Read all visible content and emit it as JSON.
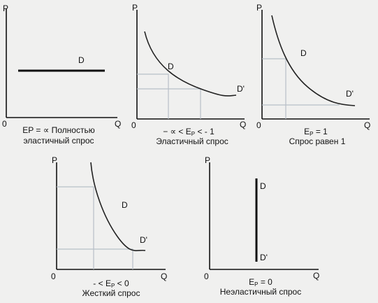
{
  "axes": {
    "p": "P",
    "q": "Q",
    "origin": "0"
  },
  "panels": [
    {
      "curve_top": "D",
      "caption_line1": "EP = ∝ Полностью",
      "caption_line2": "эластичный спрос"
    },
    {
      "curve_top": "D",
      "curve_end": "D'",
      "caption_line1": "− ∝ < E",
      "caption_sub": "P",
      "caption_tail": " < - 1",
      "caption_line2": "Эластичный спрос"
    },
    {
      "curve_top": "D",
      "curve_end": "D'",
      "caption_line1": "E",
      "caption_sub": "P",
      "caption_tail": " = 1",
      "caption_line2": "Спрос равен 1"
    },
    {
      "curve_top": "D",
      "curve_end": "D'",
      "caption_line1": "- < E",
      "caption_sub": "P",
      "caption_tail": " < 0",
      "caption_line2": "Жесткий спрос"
    },
    {
      "curve_top": "D",
      "curve_end": "D'",
      "caption_line1": "E",
      "caption_sub": "P",
      "caption_tail": " = 0",
      "caption_line2": "Неэластичный спрос"
    }
  ]
}
